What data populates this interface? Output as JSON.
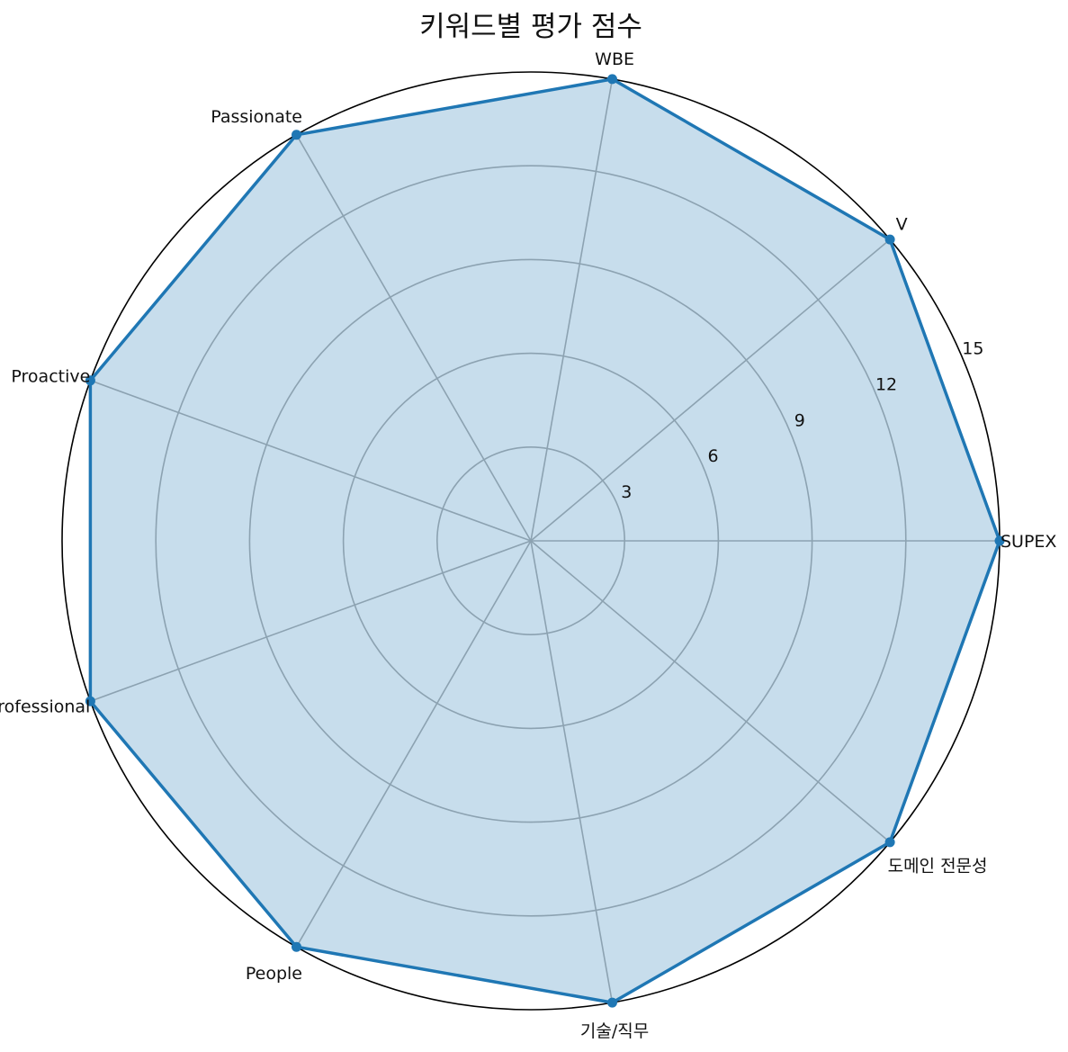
{
  "chart_data": {
    "type": "radar",
    "title": "키워드별 평가 점수",
    "categories": [
      "SUPEX",
      "V",
      "WBE",
      "Passionate",
      "Proactive",
      "Professional",
      "People",
      "기술/직무",
      "도메인 전문성"
    ],
    "series": [
      {
        "values": [
          15,
          15,
          15,
          15,
          15,
          15,
          15,
          15,
          15
        ]
      }
    ],
    "rlim": [
      0,
      15
    ],
    "rticks": [
      "3",
      "6",
      "9",
      "12",
      "15"
    ],
    "grid": true,
    "colors": {
      "line": "#1f77b4",
      "fill": "#1f77b4",
      "grid": "#b0b0b0",
      "outline": "#000000"
    }
  }
}
